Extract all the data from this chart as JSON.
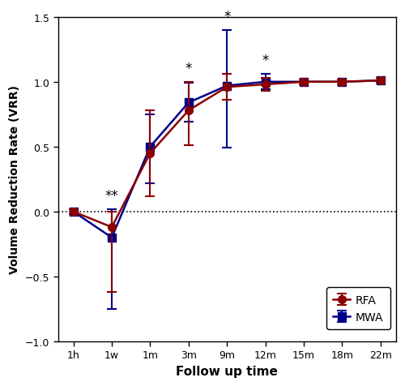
{
  "x_labels": [
    "1h",
    "1w",
    "1m",
    "3m",
    "9m",
    "12m",
    "15m",
    "18m",
    "22m"
  ],
  "x_positions": [
    0,
    1,
    2,
    3,
    4,
    5,
    6,
    7,
    8
  ],
  "rfa_y": [
    0.0,
    -0.12,
    0.45,
    0.78,
    0.96,
    0.98,
    1.0,
    1.0,
    1.01
  ],
  "rfa_yerr_lo": [
    0.02,
    0.5,
    0.33,
    0.27,
    0.1,
    0.05,
    0.02,
    0.02,
    0.02
  ],
  "rfa_yerr_hi": [
    0.02,
    0.12,
    0.33,
    0.22,
    0.1,
    0.05,
    0.02,
    0.02,
    0.02
  ],
  "mwa_y": [
    0.0,
    -0.2,
    0.5,
    0.84,
    0.97,
    1.0,
    1.0,
    1.0,
    1.01
  ],
  "mwa_yerr_lo": [
    0.02,
    0.55,
    0.28,
    0.15,
    0.48,
    0.06,
    0.02,
    0.02,
    0.02
  ],
  "mwa_yerr_hi": [
    0.02,
    0.22,
    0.25,
    0.15,
    0.43,
    0.06,
    0.02,
    0.02,
    0.02
  ],
  "rfa_color": "#8B0000",
  "mwa_color": "#00008B",
  "significance": {
    "1w": "**",
    "3m": "*",
    "9m": "*",
    "12m": "*"
  },
  "xlabel": "Follow up time",
  "ylabel": "Volume Reduction Rate (VRR)",
  "ylim": [
    -1.0,
    1.5
  ],
  "yticks": [
    -1.0,
    -0.5,
    0.0,
    0.5,
    1.0,
    1.5
  ],
  "legend_rfa": "RFA",
  "legend_mwa": "MWA",
  "background_color": "#ffffff",
  "sig_fontsize": 12,
  "marker_size": 7,
  "line_width": 1.8,
  "cap_size": 4,
  "cap_thick": 1.5,
  "elinewidth": 1.5,
  "tick_labelsize": 9,
  "xlabel_fontsize": 11,
  "ylabel_fontsize": 10,
  "legend_fontsize": 10
}
